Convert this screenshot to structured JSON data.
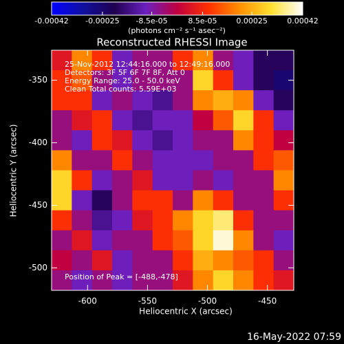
{
  "chart_data": {
    "type": "heatmap",
    "title": "Reconstructed RHESSI Image",
    "x_label": "Heliocentric X (arcsec)",
    "y_label": "Heliocentric Y (arcsec)",
    "colorbar_label": "(photons cm⁻² s⁻¹ asec⁻²)",
    "annotations": [
      "25-Nov-2012 12:44:16.000 to 12:49:16.000",
      "Detectors: 3F 5F 6F 7F 8F, Att 0",
      "Energy Range: 25.0 - 50.0 keV",
      "Clean     Total counts: 5.59E+03"
    ],
    "peak_label": "Position of Peak = [-488,-478]",
    "timestamp": "16-May-2022 07:59",
    "xlim": [
      -630,
      -428
    ],
    "ylim": [
      -518,
      -326
    ],
    "xticks": [
      -600,
      -550,
      -500,
      -450
    ],
    "yticks": [
      -500,
      -450,
      -400,
      -350
    ],
    "clim": [
      -0.00042,
      0.00042
    ],
    "cticks": [
      -0.00042,
      -0.00025,
      {
        "value": -8.5e-05,
        "label": "-8.5e-05"
      },
      {
        "value": 8.5e-05,
        "label": "8.5e-05"
      },
      0.00025,
      0.00042
    ],
    "colormap": [
      "#0000ff",
      "#1010a0",
      "#200050",
      "#6a20c0",
      "#c00040",
      "#ff3000",
      "#ff9000",
      "#ffe030",
      "#ffffff"
    ],
    "z": [
      [
        5e-05,
        0.0002,
        0.0001,
        -0.0001,
        -5e-05,
        -5e-05,
        0.0001,
        0.0002,
        -5e-05,
        -0.0001,
        -0.0002,
        -0.0002
      ],
      [
        0.0001,
        0.00015,
        -5e-05,
        -0.0001,
        -5e-05,
        -5e-05,
        -5e-05,
        0.0003,
        0.0001,
        -0.0001,
        -0.0002,
        -0.00025
      ],
      [
        0.0001,
        0.0001,
        -0.0001,
        -5e-05,
        -0.0001,
        -0.00015,
        -5e-05,
        0.0002,
        0.00025,
        0.0002,
        -0.0001,
        -0.0002
      ],
      [
        -5e-05,
        5e-05,
        0.0001,
        -0.0001,
        -0.00015,
        -0.0001,
        -0.0001,
        0,
        0.00015,
        0.0003,
        0.0001,
        -0.0001
      ],
      [
        -5e-05,
        -0.0001,
        0.0001,
        5e-05,
        -0.0001,
        -0.00015,
        -0.0001,
        -5e-05,
        -5e-05,
        0.0002,
        0.0001,
        0
      ],
      [
        0.0002,
        -5e-05,
        -5e-05,
        0.0001,
        -5e-05,
        -0.0001,
        -0.0001,
        -0.0001,
        -5e-05,
        -5e-05,
        0.0001,
        0.00015
      ],
      [
        0.0003,
        0.0001,
        -0.0001,
        -5e-05,
        5e-05,
        -0.0001,
        -0.0001,
        -5e-05,
        -0.0001,
        -5e-05,
        -5e-05,
        0.0002
      ],
      [
        0.0003,
        -0.0001,
        -0.0002,
        -5e-05,
        0.0001,
        0.0001,
        -5e-05,
        0.0002,
        0.0001,
        -5e-05,
        -5e-05,
        0.0001
      ],
      [
        0.0001,
        -5e-05,
        -0.00015,
        -0.0001,
        5e-05,
        0.0001,
        0.0002,
        0.0003,
        0.00035,
        0.0001,
        -5e-05,
        -5e-05
      ],
      [
        -5e-05,
        5e-05,
        -0.0001,
        -5e-05,
        -5e-05,
        0.0001,
        0.00015,
        0.0003,
        0.0004,
        0.0002,
        -5e-05,
        -0.0001
      ],
      [
        0,
        -5e-05,
        5e-05,
        -0.0001,
        -5e-05,
        -5e-05,
        0.0001,
        0.00025,
        0.0002,
        0.00015,
        0.0001,
        -5e-05
      ],
      [
        -5e-05,
        -0.0001,
        -5e-05,
        -0.0001,
        -5e-05,
        -5e-05,
        5e-05,
        0.0002,
        0.0003,
        0.0002,
        0.0001,
        5e-05
      ]
    ]
  }
}
